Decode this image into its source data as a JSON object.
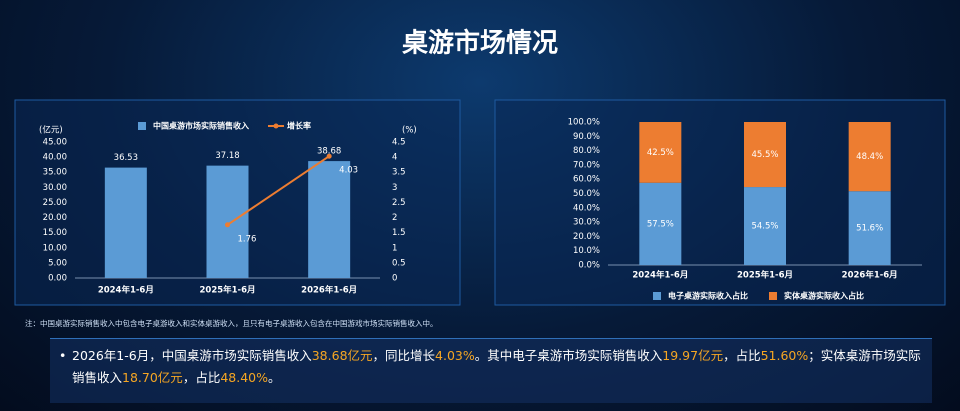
{
  "title": "桌游市场情况",
  "note": "注：中国桌游实际销售收入中包含电子桌游收入和实体桌游收入，且只有电子桌游收入包含在中国游戏市场实际销售收入中。",
  "summary": [
    {
      "text": "2026年1-6月，中国桌游市场实际销售收入",
      "highlight": false
    },
    {
      "text": "38.68亿元",
      "highlight": true
    },
    {
      "text": "，同比增长",
      "highlight": false
    },
    {
      "text": "4.03%",
      "highlight": true
    },
    {
      "text": "。其中电子桌游市场实际销售收入",
      "highlight": false
    },
    {
      "text": "19.97亿元",
      "highlight": true
    },
    {
      "text": "，占比",
      "highlight": false
    },
    {
      "text": "51.60%",
      "highlight": true
    },
    {
      "text": "；实体桌游市场实际销售收入",
      "highlight": false
    },
    {
      "text": "18.70亿元",
      "highlight": true
    },
    {
      "text": "，占比",
      "highlight": false
    },
    {
      "text": "48.40%",
      "highlight": true
    },
    {
      "text": "。",
      "highlight": false
    }
  ],
  "chart_data": [
    {
      "type": "bar",
      "stacked": false,
      "legend": "top",
      "categories": [
        "2024年1-6月",
        "2025年1-6月",
        "2026年1-6月"
      ],
      "ylabel": "(亿元)",
      "y2label": "(%)",
      "ylim": [
        0,
        45
      ],
      "yticks": [
        {
          "value": 0,
          "label": "0.00"
        },
        {
          "value": 5,
          "label": "5.00"
        },
        {
          "value": 10,
          "label": "10.00"
        },
        {
          "value": 15,
          "label": "15.00"
        },
        {
          "value": 20,
          "label": "20.00"
        },
        {
          "value": 25,
          "label": "25.00"
        },
        {
          "value": 30,
          "label": "30.00"
        },
        {
          "value": 35,
          "label": "35.00"
        },
        {
          "value": 40,
          "label": "40.00"
        },
        {
          "value": 45,
          "label": "45.00"
        }
      ],
      "y2lim": [
        0,
        4.5
      ],
      "y2ticks": [
        0,
        0.5,
        1,
        1.5,
        2,
        2.5,
        3,
        3.5,
        4,
        4.5
      ],
      "series": [
        {
          "name": "中国桌游市场实际销售收入",
          "color": "#5b9bd5",
          "values": [
            36.53,
            37.18,
            38.68
          ]
        },
        {
          "name": "增长率",
          "type": "line",
          "axis": "y2",
          "color": "#ed7d31",
          "values": [
            null,
            1.76,
            4.03
          ]
        }
      ]
    },
    {
      "type": "bar",
      "stacked": true,
      "legend": "bottom",
      "categories": [
        "2024年1-6月",
        "2025年1-6月",
        "2026年1-6月"
      ],
      "ylim": [
        0,
        100
      ],
      "yticks": [
        {
          "value": 0,
          "label": "0.0%"
        },
        {
          "value": 10,
          "label": "10.0%"
        },
        {
          "value": 20,
          "label": "20.0%"
        },
        {
          "value": 30,
          "label": "30.0%"
        },
        {
          "value": 40,
          "label": "40.0%"
        },
        {
          "value": 50,
          "label": "50.0%"
        },
        {
          "value": 60,
          "label": "60.0%"
        },
        {
          "value": 70,
          "label": "70.0%"
        },
        {
          "value": 80,
          "label": "80.0%"
        },
        {
          "value": 90,
          "label": "90.0%"
        },
        {
          "value": 100,
          "label": "100.0%"
        }
      ],
      "series": [
        {
          "name": "电子桌游实际收入占比",
          "color": "#5b9bd5",
          "values": [
            57.5,
            54.5,
            51.6
          ],
          "value_labels": [
            "57.5%",
            "54.5%",
            "51.6%"
          ]
        },
        {
          "name": "实体桌游实际收入占比",
          "color": "#ed7d31",
          "values": [
            42.5,
            45.5,
            48.4
          ],
          "value_labels": [
            "42.5%",
            "45.5%",
            "48.4%"
          ]
        }
      ]
    }
  ]
}
